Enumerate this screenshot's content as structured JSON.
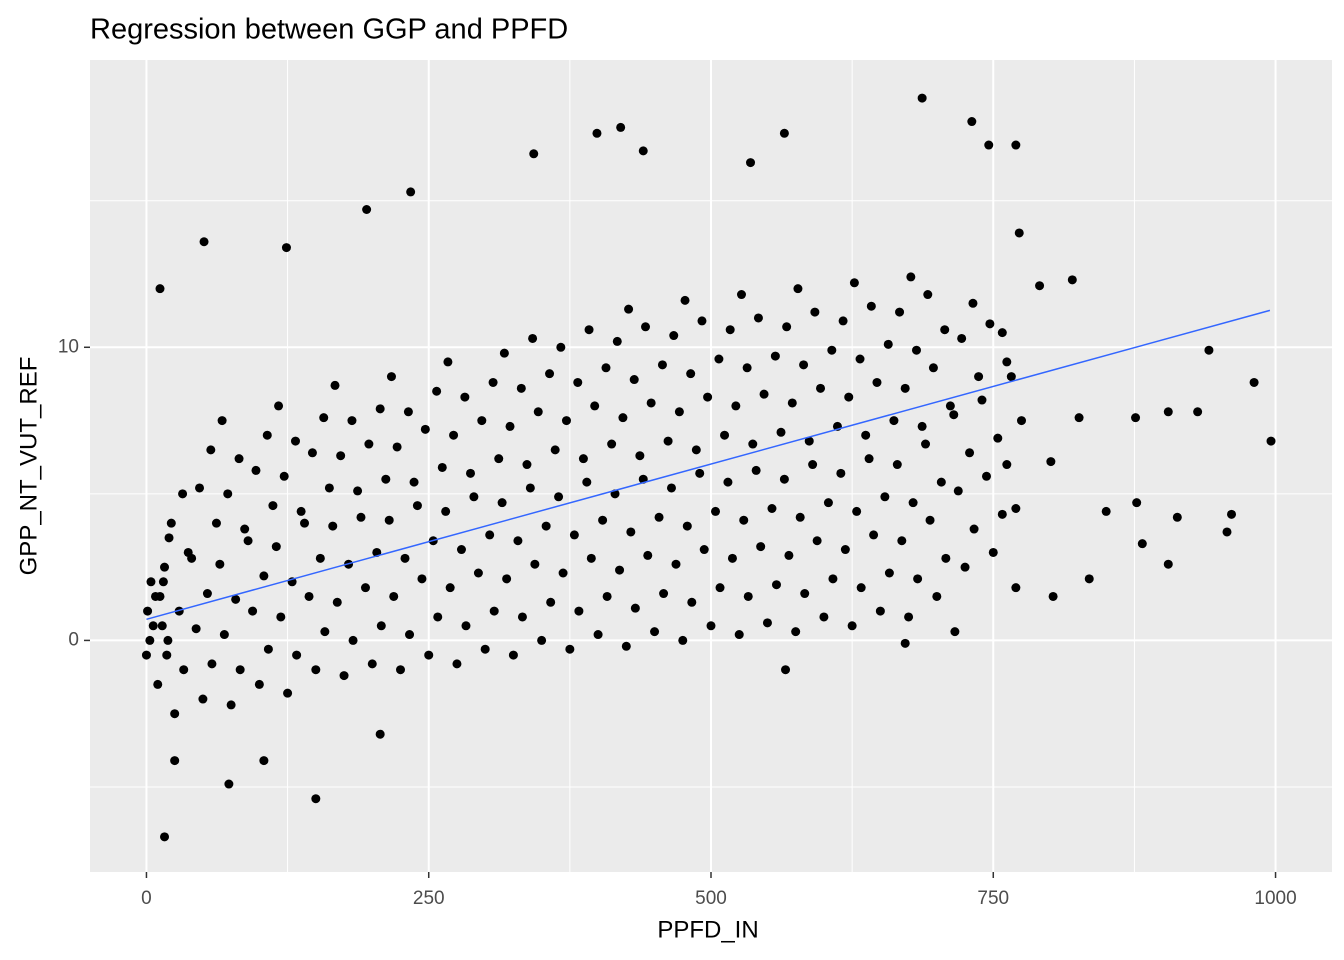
{
  "chart_data": {
    "type": "scatter",
    "title": "Regression between GGP and PPFD",
    "x_label": "PPFD_IN",
    "y_label": "GPP_NT_VUT_REF",
    "xlim": [
      -50,
      1050
    ],
    "ylim": [
      -7.9,
      19.8
    ],
    "xticks": [
      0,
      250,
      500,
      750,
      1000
    ],
    "yticks": [
      0,
      10
    ],
    "x_minor_grid": [
      125,
      375,
      625,
      875
    ],
    "y_minor_grid": [
      -5,
      5,
      15
    ],
    "grid": true,
    "series": [
      {
        "color": "#000000",
        "x": [
          0,
          3,
          6,
          1,
          8,
          4,
          10,
          18,
          14,
          12,
          16,
          20,
          25,
          33,
          19,
          29,
          15,
          37,
          22,
          32,
          50,
          58,
          44,
          54,
          40,
          62,
          47,
          57,
          75,
          83,
          69,
          79,
          65,
          87,
          72,
          82,
          67,
          100,
          108,
          94,
          104,
          90,
          112,
          97,
          107,
          125,
          133,
          119,
          129,
          115,
          137,
          122,
          132,
          117,
          150,
          158,
          144,
          154,
          140,
          162,
          147,
          157,
          175,
          183,
          169,
          179,
          165,
          187,
          172,
          182,
          167,
          200,
          208,
          194,
          204,
          190,
          212,
          197,
          207,
          225,
          233,
          219,
          229,
          215,
          237,
          222,
          232,
          217,
          250,
          258,
          244,
          254,
          240,
          262,
          247,
          257,
          275,
          283,
          269,
          279,
          265,
          287,
          272,
          282,
          267,
          300,
          308,
          294,
          304,
          290,
          312,
          297,
          307,
          325,
          333,
          319,
          329,
          315,
          337,
          322,
          332,
          317,
          350,
          358,
          344,
          354,
          340,
          362,
          347,
          357,
          342,
          375,
          383,
          369,
          379,
          365,
          387,
          372,
          382,
          367,
          400,
          408,
          394,
          404,
          390,
          412,
          397,
          407,
          392,
          425,
          433,
          419,
          429,
          415,
          437,
          422,
          432,
          417,
          427,
          450,
          458,
          444,
          454,
          440,
          462,
          447,
          457,
          442,
          475,
          483,
          469,
          479,
          465,
          487,
          472,
          482,
          467,
          477,
          500,
          508,
          494,
          504,
          490,
          512,
          497,
          507,
          492,
          525,
          533,
          519,
          529,
          515,
          537,
          522,
          532,
          517,
          527,
          550,
          558,
          544,
          554,
          540,
          562,
          547,
          557,
          542,
          575,
          583,
          569,
          579,
          565,
          587,
          572,
          582,
          567,
          577,
          600,
          608,
          594,
          604,
          590,
          612,
          597,
          607,
          592,
          625,
          633,
          619,
          629,
          615,
          637,
          622,
          632,
          617,
          627,
          650,
          658,
          644,
          654,
          640,
          662,
          647,
          657,
          642,
          675,
          683,
          669,
          679,
          665,
          687,
          672,
          682,
          667,
          677,
          700,
          708,
          694,
          704,
          690,
          712,
          697,
          707,
          692,
          725,
          733,
          719,
          729,
          715,
          737,
          722,
          732,
          750,
          758,
          744,
          754,
          740,
          762,
          747,
          770,
          762,
          775,
          766,
          758,
          687,
          420,
          399,
          731,
          565,
          746,
          770,
          440,
          343,
          535,
          234,
          195,
          124,
          51,
          12,
          820,
          941,
          981,
          996,
          961,
          905,
          835,
          803,
          770,
          16,
          150,
          73,
          566,
          672,
          716,
          876,
          905,
          850,
          877,
          801,
          826,
          931,
          913,
          882,
          957,
          791,
          773,
          25,
          104,
          207
        ],
        "values": [
          -0.5,
          0,
          0.5,
          1,
          1.5,
          2,
          -1.5,
          -0.5,
          0.5,
          1.5,
          2.5,
          3.5,
          -2.5,
          -1,
          0,
          1,
          2,
          3,
          4,
          5,
          -2,
          -0.8,
          0.4,
          1.6,
          2.8,
          4,
          5.2,
          6.5,
          -2.2,
          -1,
          0.2,
          1.4,
          2.6,
          3.8,
          5,
          6.2,
          7.5,
          -1.5,
          -0.3,
          1,
          2.2,
          3.4,
          4.6,
          5.8,
          7,
          -1.8,
          -0.5,
          0.8,
          2,
          3.2,
          4.4,
          5.6,
          6.8,
          8,
          -1,
          0.3,
          1.5,
          2.8,
          4,
          5.2,
          6.4,
          7.6,
          -1.2,
          0,
          1.3,
          2.6,
          3.9,
          5.1,
          6.3,
          7.5,
          8.7,
          -0.8,
          0.5,
          1.8,
          3,
          4.2,
          5.5,
          6.7,
          7.9,
          -1,
          0.2,
          1.5,
          2.8,
          4.1,
          5.4,
          6.6,
          7.8,
          9,
          -0.5,
          0.8,
          2.1,
          3.4,
          4.6,
          5.9,
          7.2,
          8.5,
          -0.8,
          0.5,
          1.8,
          3.1,
          4.4,
          5.7,
          7,
          8.3,
          9.5,
          -0.3,
          1,
          2.3,
          3.6,
          4.9,
          6.2,
          7.5,
          8.8,
          -0.5,
          0.8,
          2.1,
          3.4,
          4.7,
          6,
          7.3,
          8.6,
          9.8,
          0,
          1.3,
          2.6,
          3.9,
          5.2,
          6.5,
          7.8,
          9.1,
          10.3,
          -0.3,
          1,
          2.3,
          3.6,
          4.9,
          6.2,
          7.5,
          8.8,
          10,
          0.2,
          1.5,
          2.8,
          4.1,
          5.4,
          6.7,
          8,
          9.3,
          10.6,
          -0.2,
          1.1,
          2.4,
          3.7,
          5,
          6.3,
          7.6,
          8.9,
          10.2,
          11.3,
          0.3,
          1.6,
          2.9,
          4.2,
          5.5,
          6.8,
          8.1,
          9.4,
          10.7,
          0,
          1.3,
          2.6,
          3.9,
          5.2,
          6.5,
          7.8,
          9.1,
          10.4,
          11.6,
          0.5,
          1.8,
          3.1,
          4.4,
          5.7,
          7,
          8.3,
          9.6,
          10.9,
          0.2,
          1.5,
          2.8,
          4.1,
          5.4,
          6.7,
          8,
          9.3,
          10.6,
          11.8,
          0.6,
          1.9,
          3.2,
          4.5,
          5.8,
          7.1,
          8.4,
          9.7,
          11,
          0.3,
          1.6,
          2.9,
          4.2,
          5.5,
          6.8,
          8.1,
          9.4,
          10.7,
          12,
          0.8,
          2.1,
          3.4,
          4.7,
          6,
          7.3,
          8.6,
          9.9,
          11.2,
          0.5,
          1.8,
          3.1,
          4.4,
          5.7,
          7,
          8.3,
          9.6,
          10.9,
          12.2,
          1,
          2.3,
          3.6,
          4.9,
          6.2,
          7.5,
          8.8,
          10.1,
          11.4,
          0.8,
          2.1,
          3.4,
          4.7,
          6,
          7.3,
          8.6,
          9.9,
          11.2,
          12.4,
          1.5,
          2.8,
          4.1,
          5.4,
          6.7,
          8,
          9.3,
          10.6,
          11.8,
          2.5,
          3.8,
          5.1,
          6.4,
          7.7,
          9,
          10.3,
          11.5,
          3,
          4.3,
          5.6,
          6.9,
          8.2,
          9.5,
          10.8,
          4.5,
          6,
          7.5,
          9,
          10.5,
          18.5,
          17.5,
          17.3,
          17.7,
          17.3,
          16.9,
          16.9,
          16.7,
          16.6,
          16.3,
          15.3,
          14.7,
          13.4,
          13.6,
          12,
          12.3,
          9.9,
          8.8,
          6.8,
          4.3,
          2.6,
          2.1,
          1.5,
          1.8,
          -6.7,
          -5.4,
          -4.9,
          -1,
          -0.1,
          0.3,
          7.6,
          7.8,
          4.4,
          4.7,
          6.1,
          7.6,
          7.8,
          4.2,
          3.3,
          3.7,
          12.1,
          13.9,
          -4.1,
          -4.1,
          -3.2
        ]
      }
    ],
    "trend": {
      "color": "#3366ff",
      "x": [
        0,
        995
      ],
      "values": [
        0.72,
        11.26
      ]
    }
  }
}
